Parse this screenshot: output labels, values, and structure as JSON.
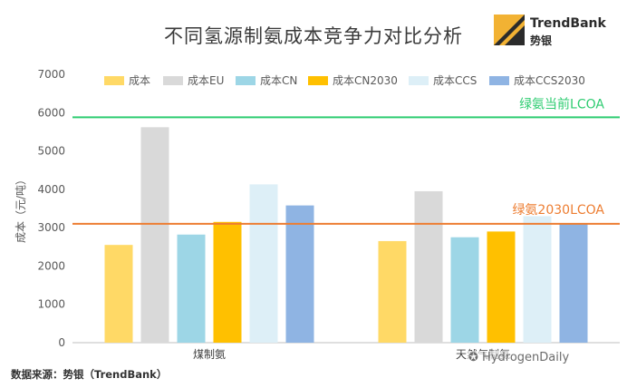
{
  "title": "不同氢源制氨成本竞争力对比分析",
  "logo": {
    "brand_en": "TrendBank",
    "brand_cn": "势银"
  },
  "source_note": "数据来源：势银（TrendBank）",
  "watermark": "HydrogenDaily",
  "chart_data": {
    "type": "bar",
    "categories": [
      "煤制氨",
      "天然气制氨"
    ],
    "ylabel": "成本（元/吨）",
    "ylim": [
      0,
      7000
    ],
    "yticks": [
      0,
      1000,
      2000,
      3000,
      4000,
      5000,
      6000,
      7000
    ],
    "grid": false,
    "legend_position": "top",
    "series": [
      {
        "name": "成本",
        "color": "#FFD966",
        "values": [
          2550,
          2650
        ]
      },
      {
        "name": "成本EU",
        "color": "#D9D9D9",
        "values": [
          5620,
          3950
        ]
      },
      {
        "name": "成本CN",
        "color": "#9DD6E6",
        "values": [
          2820,
          2750
        ]
      },
      {
        "name": "成本CN2030",
        "color": "#FFC000",
        "values": [
          3150,
          2900
        ]
      },
      {
        "name": "成本CCS",
        "color": "#DDEFF7",
        "values": [
          4130,
          3300
        ]
      },
      {
        "name": "成本CCS2030",
        "color": "#8FB4E3",
        "values": [
          3580,
          3100
        ]
      }
    ],
    "reference_lines": [
      {
        "label": "绿氨当前LCOA",
        "value": 5880,
        "color": "#2ECC71"
      },
      {
        "label": "绿氨2030LCOA",
        "value": 3100,
        "color": "#ED7D31"
      }
    ]
  }
}
